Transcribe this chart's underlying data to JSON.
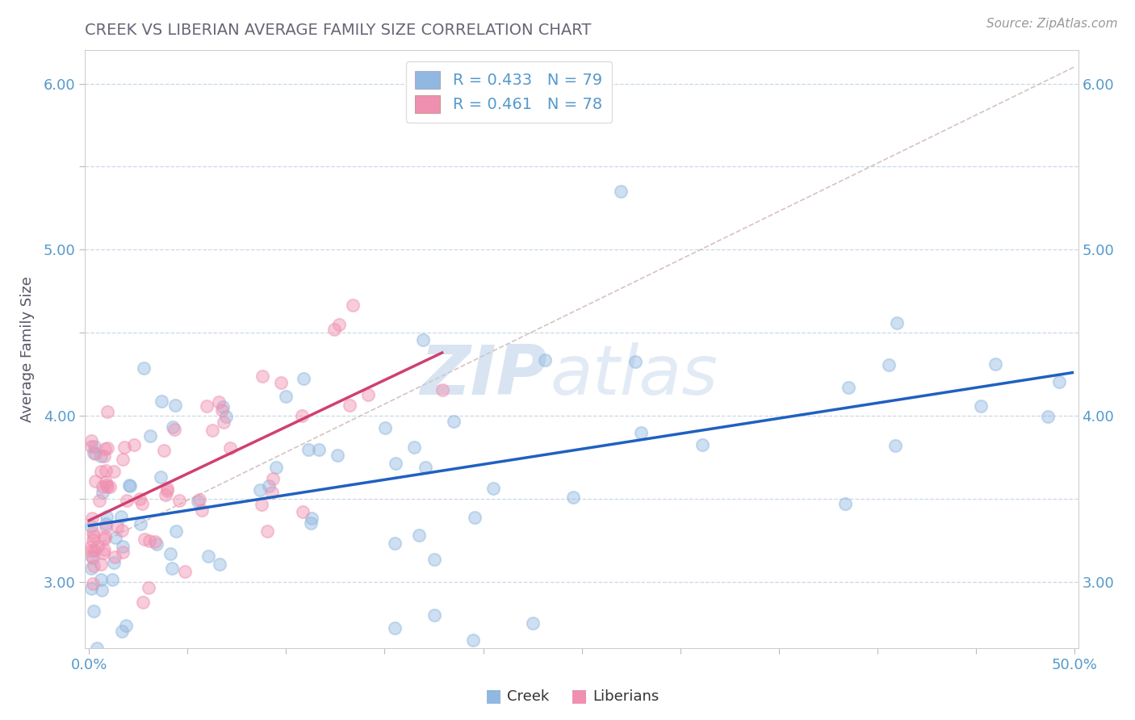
{
  "title": "CREEK VS LIBERIAN AVERAGE FAMILY SIZE CORRELATION CHART",
  "source": "Source: ZipAtlas.com",
  "ylabel": "Average Family Size",
  "xlim": [
    -0.002,
    0.502
  ],
  "ylim": [
    2.6,
    6.2
  ],
  "creek_color": "#90b8e0",
  "liberian_color": "#f090b0",
  "creek_line_color": "#2060c0",
  "liberian_line_color": "#d04070",
  "ref_line_color": "#d0b8b8",
  "creek_r": 0.433,
  "creek_n": 79,
  "liberian_r": 0.461,
  "liberian_n": 78,
  "watermark_zip": "ZIP",
  "watermark_atlas": "atlas",
  "background_color": "#ffffff",
  "grid_color": "#c8d8e8",
  "title_color": "#666677",
  "tick_color": "#5599cc",
  "axis_label_color": "#555566",
  "yticks": [
    3.0,
    3.5,
    4.0,
    4.5,
    5.0,
    5.5,
    6.0
  ],
  "ytick_labels": [
    "3.00",
    "",
    "4.00",
    "",
    "5.00",
    "",
    "6.00"
  ]
}
